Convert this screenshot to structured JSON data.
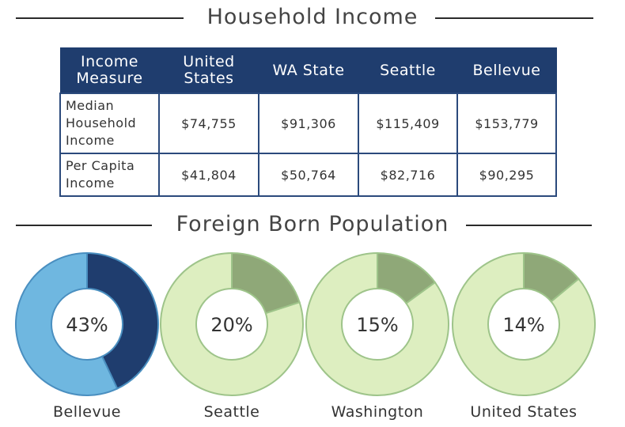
{
  "household_income": {
    "title": "Household Income",
    "headers": [
      "Income Measure",
      "United States",
      "WA State",
      "Seattle",
      "Bellevue"
    ],
    "rows": [
      {
        "measure": "Median Household Income",
        "values": [
          "$74,755",
          "$91,306",
          "$115,409",
          "$153,779"
        ]
      },
      {
        "measure": "Per Capita Income",
        "values": [
          "$41,804",
          "$50,764",
          "$82,716",
          "$90,295"
        ]
      }
    ]
  },
  "foreign_born": {
    "title": "Foreign Born Population"
  },
  "chart_data": [
    {
      "type": "table",
      "title": "Household Income",
      "columns": [
        "Income Measure",
        "United States",
        "WA State",
        "Seattle",
        "Bellevue"
      ],
      "rows": [
        [
          "Median Household Income",
          74755,
          91306,
          115409,
          153779
        ],
        [
          "Per Capita Income",
          41804,
          50764,
          82716,
          90295
        ]
      ]
    },
    {
      "type": "pie",
      "title": "Foreign Born Population",
      "style": "donut",
      "categories": [
        "Bellevue",
        "Seattle",
        "Washington",
        "United States"
      ],
      "values": [
        43,
        20,
        15,
        14
      ],
      "labels": [
        "43%",
        "20%",
        "15%",
        "14%"
      ],
      "colors": [
        {
          "filled": "#1f3d6e",
          "remainder": "#6fb7e0",
          "stroke": "#4a8fc0"
        },
        {
          "filled": "#8fa878",
          "remainder": "#ddeec0",
          "stroke": "#9ec48a"
        },
        {
          "filled": "#8fa878",
          "remainder": "#ddeec0",
          "stroke": "#9ec48a"
        },
        {
          "filled": "#8fa878",
          "remainder": "#ddeec0",
          "stroke": "#9ec48a"
        }
      ]
    }
  ]
}
